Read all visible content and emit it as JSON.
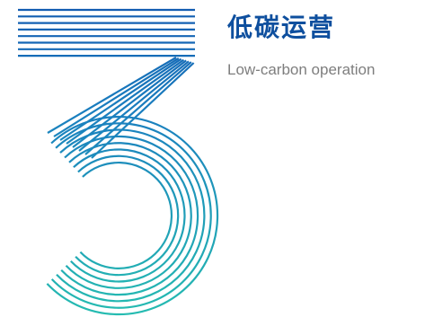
{
  "section": {
    "number": "3",
    "title_cn": "低碳运营",
    "title_en": "Low-carbon operation"
  },
  "colors": {
    "blue": "#1159b0",
    "teal": "#22b3ad",
    "title": "#0e4f9e",
    "subtitle": "#7e7e7e"
  },
  "icon": "striped-number-3-icon"
}
